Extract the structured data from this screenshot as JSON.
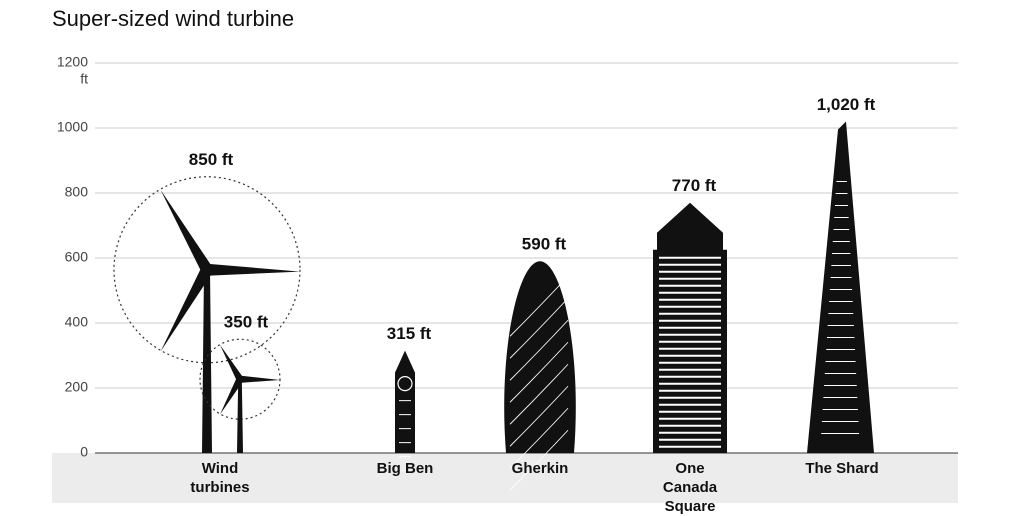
{
  "chart_data": {
    "type": "pictogram",
    "title": "Super-sized wind turbine",
    "ylabel": "ft",
    "categories": [
      "Wind turbines",
      null,
      "Big Ben",
      "Gherkin",
      "One Canada Square",
      "The Shard"
    ],
    "values": [
      850,
      350,
      315,
      590,
      770,
      1020
    ],
    "value_labels": [
      "850 ft",
      "350 ft",
      "315 ft",
      "590 ft",
      "770 ft",
      "1,020 ft"
    ],
    "ylim": [
      0,
      1200
    ],
    "yticks": [
      0,
      200,
      400,
      600,
      800,
      1000,
      1200
    ],
    "grid": true,
    "color": "#111111"
  }
}
